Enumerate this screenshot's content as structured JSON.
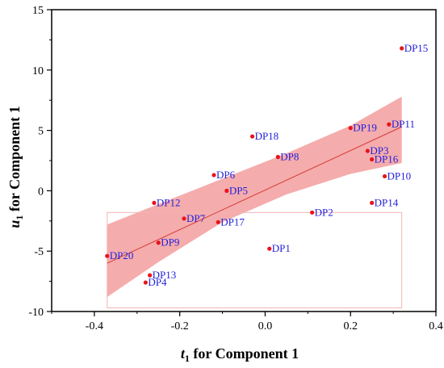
{
  "chart_data": {
    "type": "scatter",
    "title": "",
    "xlabel": {
      "var": "t",
      "sub": "1",
      "rest": " for Component 1"
    },
    "ylabel": {
      "var": "u",
      "sub": "1",
      "rest": " for Component 1"
    },
    "xlim": [
      -0.5,
      0.4
    ],
    "ylim": [
      -10,
      15
    ],
    "xticks": [
      -0.4,
      -0.2,
      0.0,
      0.2,
      0.4
    ],
    "xtick_labels": [
      "-0.4",
      "-0.2",
      "0.0",
      "0.2",
      "0.4"
    ],
    "yticks": [
      -10,
      -5,
      0,
      5,
      10,
      15
    ],
    "ytick_labels": [
      "-10",
      "-5",
      "0",
      "5",
      "10",
      "15"
    ],
    "grid": false,
    "legend": "none",
    "colors": {
      "point": "#e8141b",
      "label": "#1f1fdc",
      "band": "#f08080",
      "fit_line": "#d63c3c",
      "axis": "#000000"
    },
    "points": [
      {
        "label": "DP1",
        "x": 0.01,
        "y": -4.8
      },
      {
        "label": "DP2",
        "x": 0.11,
        "y": -1.8
      },
      {
        "label": "DP3",
        "x": 0.24,
        "y": 3.3
      },
      {
        "label": "DP4",
        "x": -0.28,
        "y": -7.6
      },
      {
        "label": "DP5",
        "x": -0.09,
        "y": 0.0
      },
      {
        "label": "DP6",
        "x": -0.12,
        "y": 1.3
      },
      {
        "label": "DP7",
        "x": -0.19,
        "y": -2.3
      },
      {
        "label": "DP8",
        "x": 0.03,
        "y": 2.8
      },
      {
        "label": "DP9",
        "x": -0.25,
        "y": -4.3
      },
      {
        "label": "DP10",
        "x": 0.28,
        "y": 1.2
      },
      {
        "label": "DP11",
        "x": 0.29,
        "y": 5.5
      },
      {
        "label": "DP12",
        "x": -0.26,
        "y": -1.0
      },
      {
        "label": "DP13",
        "x": -0.27,
        "y": -7.0
      },
      {
        "label": "DP14",
        "x": 0.25,
        "y": -1.0
      },
      {
        "label": "DP15",
        "x": 0.32,
        "y": 11.8
      },
      {
        "label": "DP16",
        "x": 0.25,
        "y": 2.6
      },
      {
        "label": "DP17",
        "x": -0.11,
        "y": -2.6
      },
      {
        "label": "DP18",
        "x": -0.03,
        "y": 4.5
      },
      {
        "label": "DP19",
        "x": 0.2,
        "y": 5.2
      },
      {
        "label": "DP20",
        "x": -0.37,
        "y": -5.4
      }
    ],
    "fit_line": {
      "x": [
        -0.37,
        0.32
      ],
      "y": [
        -6.0,
        5.3
      ]
    },
    "confidence_band": {
      "x": [
        -0.37,
        -0.25,
        -0.1,
        0.05,
        0.2,
        0.32
      ],
      "upper": [
        -2.8,
        -1.1,
        1.0,
        3.1,
        5.4,
        7.8
      ],
      "lower": [
        -8.8,
        -5.9,
        -2.6,
        -0.3,
        1.4,
        2.3
      ]
    },
    "reference_box": {
      "x": [
        -0.37,
        0.32
      ],
      "y": [
        -9.7,
        -1.8
      ]
    }
  }
}
